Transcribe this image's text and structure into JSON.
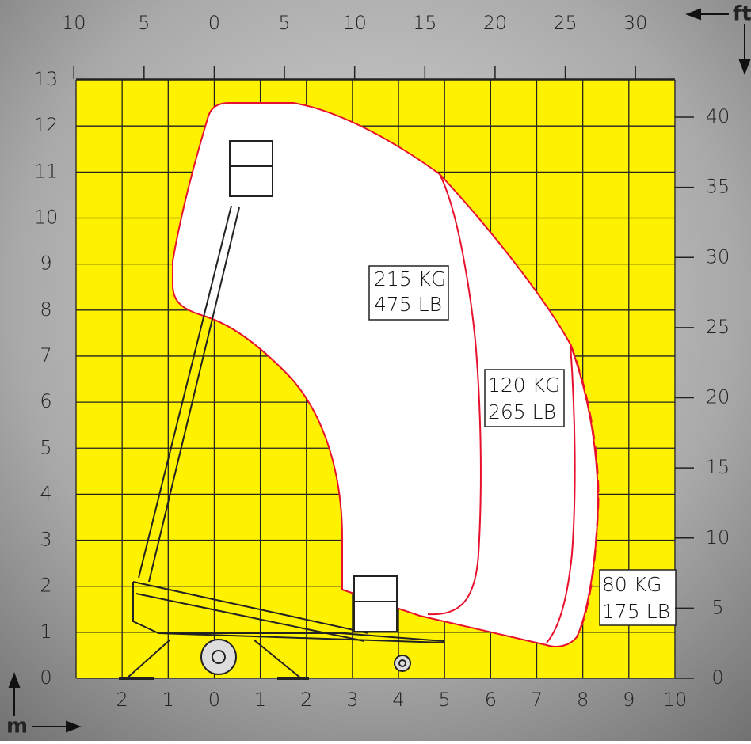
{
  "units": {
    "ft": "ft",
    "m": "m"
  },
  "axes": {
    "top_ft": [
      {
        "value": -10,
        "label": "10"
      },
      {
        "value": -5,
        "label": "5"
      },
      0,
      5,
      10,
      15,
      20,
      25,
      30
    ],
    "right_ft": [
      0,
      5,
      10,
      15,
      20,
      25,
      30,
      35,
      40
    ],
    "left_m": [
      0,
      1,
      2,
      3,
      4,
      5,
      6,
      7,
      8,
      9,
      10,
      11,
      12,
      13
    ],
    "bottom_m": [
      {
        "value": -2,
        "label": "2"
      },
      {
        "value": -1,
        "label": "1"
      },
      0,
      1,
      2,
      3,
      4,
      5,
      6,
      7,
      8,
      9,
      10
    ]
  },
  "loads": [
    {
      "kg": "215 KG",
      "lb": "475 LB"
    },
    {
      "kg": "120 KG",
      "lb": "265 LB"
    },
    {
      "kg": "80 KG",
      "lb": "175 LB"
    }
  ]
}
